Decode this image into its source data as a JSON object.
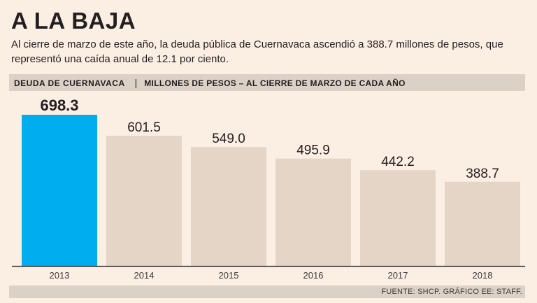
{
  "header": {
    "title": "A LA BAJA",
    "subtitle": "Al cierre de marzo de este año, la deuda pública de Cuernavaca ascendió a 388.7 millones de pesos, que representó una caída anual de 12.1 por ciento."
  },
  "chart_header": {
    "name": "DEUDA DE CUERNAVACA",
    "separator": "|",
    "unit": "MILLONES DE PESOS – AL CIERRE DE MARZO DE CADA AÑO"
  },
  "footer": {
    "source": "FUENTE: SHCP. GRÁFICO EE: STAFF."
  },
  "chart_data": {
    "type": "bar",
    "title": "DEUDA DE CUERNAVACA",
    "ylabel": "MILLONES DE PESOS – AL CIERRE DE MARZO DE CADA AÑO",
    "xlabel": "",
    "categories": [
      "2013",
      "2014",
      "2015",
      "2016",
      "2017",
      "2018"
    ],
    "values": [
      698.3,
      601.5,
      549.0,
      495.9,
      442.2,
      388.7
    ],
    "value_labels": [
      "698.3",
      "601.5",
      "549.0",
      "495.9",
      "442.2",
      "388.7"
    ],
    "highlight_index": 0,
    "ylim": [
      0,
      698.3
    ],
    "grid": false,
    "legend": "none",
    "colors": {
      "highlight": "#00aeef",
      "bar": "#e4d5c7",
      "axis": "#231f20"
    }
  }
}
